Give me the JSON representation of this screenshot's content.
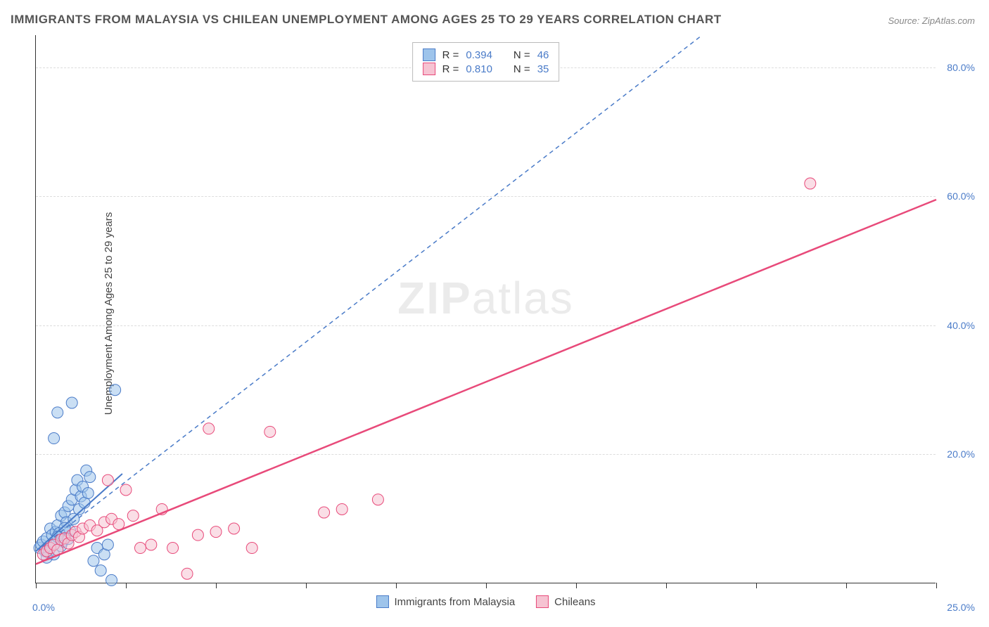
{
  "title": "IMMIGRANTS FROM MALAYSIA VS CHILEAN UNEMPLOYMENT AMONG AGES 25 TO 29 YEARS CORRELATION CHART",
  "source": "Source: ZipAtlas.com",
  "y_axis_label": "Unemployment Among Ages 25 to 29 years",
  "watermark_a": "ZIP",
  "watermark_b": "atlas",
  "chart": {
    "type": "scatter",
    "background_color": "#ffffff",
    "grid_color": "#dddddd",
    "axis_color": "#333333",
    "label_color": "#4a7bc8",
    "xlim": [
      0,
      25
    ],
    "ylim": [
      0,
      85
    ],
    "x_ticks": [
      0,
      2.5,
      5,
      7.5,
      10,
      12.5,
      15,
      17.5,
      20,
      22.5,
      25
    ],
    "x_tick_labels": {
      "0": "0.0%",
      "25": "25.0%"
    },
    "y_gridlines": [
      20,
      40,
      60,
      80
    ],
    "y_tick_labels": {
      "20": "20.0%",
      "40": "40.0%",
      "60": "60.0%",
      "80": "80.0%"
    },
    "marker_radius": 8,
    "marker_opacity": 0.55,
    "series": [
      {
        "name": "Immigrants from Malaysia",
        "color_fill": "#9ec4eb",
        "color_stroke": "#4a7bc8",
        "R": "0.394",
        "N": "46",
        "points": [
          [
            0.1,
            5.5
          ],
          [
            0.15,
            6.0
          ],
          [
            0.2,
            6.5
          ],
          [
            0.25,
            5.0
          ],
          [
            0.3,
            7.0
          ],
          [
            0.35,
            4.8
          ],
          [
            0.4,
            8.5
          ],
          [
            0.45,
            7.5
          ],
          [
            0.5,
            6.0
          ],
          [
            0.55,
            8.0
          ],
          [
            0.6,
            9.0
          ],
          [
            0.65,
            7.8
          ],
          [
            0.7,
            10.5
          ],
          [
            0.75,
            6.5
          ],
          [
            0.8,
            11.0
          ],
          [
            0.85,
            9.5
          ],
          [
            0.9,
            12.0
          ],
          [
            0.95,
            8.2
          ],
          [
            1.0,
            13.0
          ],
          [
            1.05,
            10.0
          ],
          [
            1.1,
            14.5
          ],
          [
            1.15,
            16.0
          ],
          [
            1.2,
            11.5
          ],
          [
            1.25,
            13.5
          ],
          [
            1.3,
            15.0
          ],
          [
            1.35,
            12.5
          ],
          [
            1.4,
            17.5
          ],
          [
            1.45,
            14.0
          ],
          [
            1.5,
            16.5
          ],
          [
            1.6,
            3.5
          ],
          [
            1.7,
            5.5
          ],
          [
            1.8,
            2.0
          ],
          [
            1.9,
            4.5
          ],
          [
            2.0,
            6.0
          ],
          [
            2.1,
            0.5
          ],
          [
            0.5,
            22.5
          ],
          [
            0.6,
            26.5
          ],
          [
            1.0,
            28.0
          ],
          [
            2.2,
            30.0
          ],
          [
            0.3,
            4.0
          ],
          [
            0.4,
            5.5
          ],
          [
            0.5,
            4.5
          ],
          [
            0.6,
            7.2
          ],
          [
            0.7,
            5.8
          ],
          [
            0.8,
            8.6
          ],
          [
            0.9,
            6.9
          ]
        ],
        "trend_solid": {
          "x1": 0,
          "y1": 5.0,
          "x2": 2.4,
          "y2": 17.0,
          "width": 2
        },
        "trend_dashed": {
          "x1": 0,
          "y1": 5.0,
          "x2": 18.5,
          "y2": 85.0,
          "width": 1.5,
          "dash": "6,5"
        }
      },
      {
        "name": "Chileans",
        "color_fill": "#f6c3d2",
        "color_stroke": "#e84a7a",
        "R": "0.810",
        "N": "35",
        "points": [
          [
            0.2,
            4.5
          ],
          [
            0.3,
            5.0
          ],
          [
            0.4,
            5.5
          ],
          [
            0.5,
            6.0
          ],
          [
            0.6,
            5.2
          ],
          [
            0.7,
            6.8
          ],
          [
            0.8,
            7.0
          ],
          [
            0.9,
            6.2
          ],
          [
            1.0,
            7.5
          ],
          [
            1.1,
            8.0
          ],
          [
            1.2,
            7.2
          ],
          [
            1.3,
            8.5
          ],
          [
            1.5,
            9.0
          ],
          [
            1.7,
            8.2
          ],
          [
            1.9,
            9.5
          ],
          [
            2.1,
            10.0
          ],
          [
            2.3,
            9.2
          ],
          [
            2.5,
            14.5
          ],
          [
            2.7,
            10.5
          ],
          [
            2.9,
            5.5
          ],
          [
            3.2,
            6.0
          ],
          [
            3.5,
            11.5
          ],
          [
            3.8,
            5.5
          ],
          [
            4.2,
            1.5
          ],
          [
            4.5,
            7.5
          ],
          [
            4.8,
            24.0
          ],
          [
            5.0,
            8.0
          ],
          [
            5.5,
            8.5
          ],
          [
            6.0,
            5.5
          ],
          [
            6.5,
            23.5
          ],
          [
            8.0,
            11.0
          ],
          [
            8.5,
            11.5
          ],
          [
            9.5,
            13.0
          ],
          [
            21.5,
            62.0
          ],
          [
            2.0,
            16.0
          ]
        ],
        "trend_solid": {
          "x1": 0,
          "y1": 3.0,
          "x2": 25.0,
          "y2": 59.5,
          "width": 2.5
        }
      }
    ]
  },
  "legend_corr_labels": {
    "R": "R =",
    "N": "N ="
  }
}
